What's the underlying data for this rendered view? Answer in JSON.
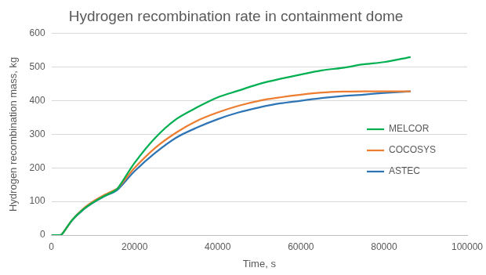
{
  "chart_data": {
    "type": "line",
    "title": "Hydrogen recombination rate in containment dome",
    "x_label": "Time, s",
    "y_label": "Hydrogen recombination mass, kg",
    "x": [
      0,
      2000,
      2500,
      5000,
      7500,
      10000,
      12500,
      15000,
      16000,
      20000,
      25000,
      30000,
      35000,
      40000,
      45000,
      50000,
      55000,
      60000,
      65000,
      70000,
      75000,
      80000,
      86400
    ],
    "series": [
      {
        "name": "MELCOR",
        "color": "#00b050",
        "values": [
          0,
          0,
          2,
          45,
          75,
          97,
          115,
          130,
          140,
          215,
          290,
          345,
          380,
          410,
          430,
          450,
          465,
          478,
          490,
          498,
          508,
          515,
          530
        ]
      },
      {
        "name": "COCOSYS",
        "color": "#ed7d31",
        "values": [
          0,
          0,
          2,
          45,
          77,
          100,
          118,
          133,
          140,
          200,
          260,
          305,
          340,
          365,
          385,
          400,
          410,
          418,
          424,
          427,
          428,
          428,
          428
        ]
      },
      {
        "name": "ASTEC",
        "color": "#2e75b6",
        "values": [
          0,
          0,
          2,
          44,
          74,
          96,
          114,
          128,
          136,
          190,
          245,
          290,
          320,
          345,
          365,
          380,
          392,
          400,
          408,
          414,
          418,
          423,
          428
        ]
      }
    ],
    "xlim": [
      0,
      100000
    ],
    "xticks": [
      0,
      20000,
      40000,
      60000,
      80000,
      100000
    ],
    "ylim": [
      0,
      600
    ],
    "yticks": [
      0,
      100,
      200,
      300,
      400,
      500,
      600
    ],
    "grid": true,
    "legend": "right"
  }
}
